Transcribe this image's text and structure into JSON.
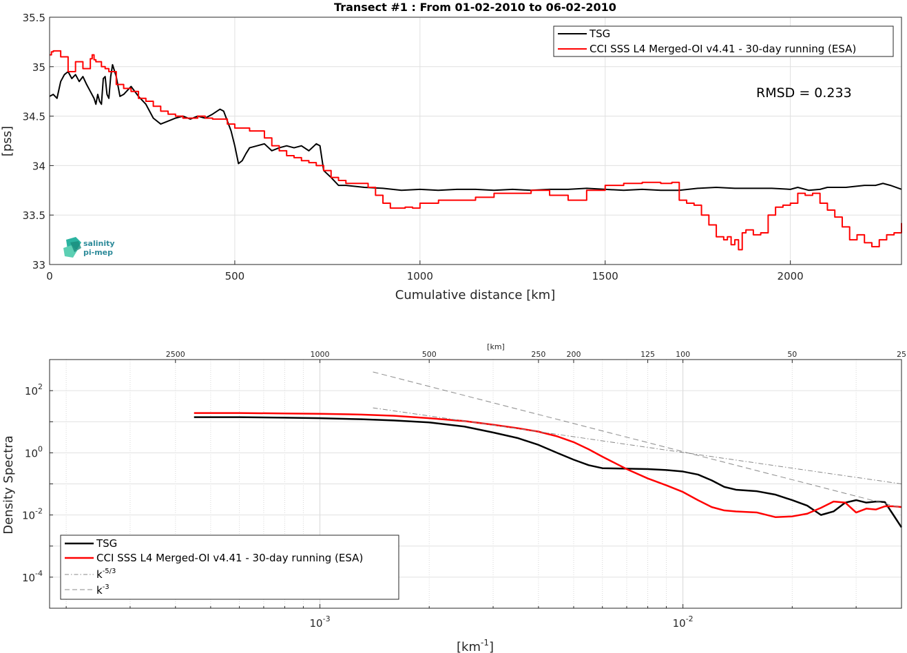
{
  "chart_data": [
    {
      "type": "line",
      "title": "Transect #1 : From 01-02-2010 to 06-02-2010",
      "xlabel": "Cumulative distance [km]",
      "ylabel": "[pss]",
      "xlim": [
        0,
        2300
      ],
      "ylim": [
        33,
        35.5
      ],
      "xticks": [
        0,
        500,
        1000,
        1500,
        2000
      ],
      "yticks": [
        33,
        33.5,
        34,
        34.5,
        35,
        35.5
      ],
      "grid": true,
      "legend_position": "top-right",
      "annotation": "RMSD = 0.233",
      "logo": {
        "line1": "salinity",
        "line2": "pi-mep"
      },
      "series": [
        {
          "name": "TSG",
          "color": "#000000",
          "x": [
            0,
            10,
            20,
            30,
            40,
            50,
            60,
            70,
            80,
            90,
            100,
            110,
            120,
            125,
            130,
            135,
            140,
            145,
            150,
            155,
            160,
            165,
            170,
            180,
            190,
            200,
            220,
            240,
            260,
            280,
            300,
            320,
            340,
            360,
            380,
            400,
            420,
            440,
            460,
            470,
            480,
            490,
            500,
            510,
            520,
            530,
            540,
            560,
            580,
            600,
            620,
            640,
            660,
            680,
            700,
            720,
            730,
            740,
            760,
            780,
            800,
            850,
            900,
            950,
            1000,
            1050,
            1100,
            1150,
            1200,
            1250,
            1300,
            1350,
            1400,
            1450,
            1500,
            1550,
            1600,
            1650,
            1700,
            1750,
            1800,
            1850,
            1900,
            1950,
            2000,
            2020,
            2050,
            2080,
            2100,
            2150,
            2200,
            2230,
            2250,
            2270,
            2300
          ],
          "y": [
            34.7,
            34.72,
            34.68,
            34.85,
            34.92,
            34.95,
            34.88,
            34.92,
            34.85,
            34.9,
            34.82,
            34.75,
            34.68,
            34.62,
            34.72,
            34.65,
            34.62,
            34.88,
            34.9,
            34.72,
            34.68,
            34.9,
            35.02,
            34.9,
            34.7,
            34.72,
            34.8,
            34.7,
            34.62,
            34.48,
            34.42,
            34.45,
            34.48,
            34.5,
            34.47,
            34.5,
            34.48,
            34.52,
            34.57,
            34.55,
            34.45,
            34.35,
            34.2,
            34.02,
            34.05,
            34.12,
            34.18,
            34.2,
            34.22,
            34.15,
            34.18,
            34.2,
            34.18,
            34.2,
            34.15,
            34.22,
            34.2,
            33.95,
            33.88,
            33.8,
            33.8,
            33.78,
            33.77,
            33.75,
            33.76,
            33.75,
            33.76,
            33.76,
            33.75,
            33.76,
            33.75,
            33.76,
            33.76,
            33.77,
            33.76,
            33.75,
            33.76,
            33.75,
            33.75,
            33.77,
            33.78,
            33.77,
            33.77,
            33.77,
            33.76,
            33.78,
            33.75,
            33.76,
            33.78,
            33.78,
            33.8,
            33.8,
            33.82,
            33.8,
            33.76
          ]
        },
        {
          "name": "CCI SSS L4 Merged-OI v4.41 - 30-day running (ESA)",
          "color": "#ff0000",
          "x": [
            0,
            5,
            10,
            30,
            50,
            60,
            70,
            80,
            90,
            100,
            110,
            115,
            120,
            125,
            140,
            150,
            160,
            170,
            180,
            200,
            220,
            240,
            260,
            280,
            300,
            320,
            340,
            360,
            380,
            400,
            420,
            440,
            460,
            480,
            500,
            520,
            540,
            560,
            580,
            600,
            620,
            640,
            660,
            680,
            700,
            720,
            740,
            760,
            780,
            800,
            820,
            840,
            860,
            880,
            900,
            920,
            940,
            960,
            980,
            1000,
            1050,
            1100,
            1150,
            1200,
            1250,
            1300,
            1350,
            1400,
            1450,
            1500,
            1550,
            1600,
            1650,
            1680,
            1700,
            1720,
            1740,
            1760,
            1780,
            1800,
            1820,
            1830,
            1840,
            1850,
            1860,
            1870,
            1880,
            1900,
            1920,
            1940,
            1960,
            1980,
            2000,
            2020,
            2040,
            2060,
            2080,
            2100,
            2120,
            2140,
            2160,
            2180,
            2200,
            2220,
            2240,
            2260,
            2280,
            2300
          ],
          "y": [
            35.12,
            35.15,
            35.16,
            35.1,
            34.95,
            34.95,
            35.05,
            35.05,
            34.98,
            34.98,
            35.08,
            35.12,
            35.07,
            35.05,
            35.0,
            34.98,
            34.95,
            34.95,
            34.82,
            34.78,
            34.75,
            34.68,
            34.65,
            34.6,
            34.55,
            34.52,
            34.5,
            34.48,
            34.48,
            34.5,
            34.48,
            34.47,
            34.47,
            34.42,
            34.38,
            34.38,
            34.35,
            34.35,
            34.28,
            34.2,
            34.15,
            34.1,
            34.08,
            34.05,
            34.03,
            34.0,
            33.95,
            33.88,
            33.85,
            33.82,
            33.82,
            33.82,
            33.78,
            33.7,
            33.62,
            33.57,
            33.57,
            33.58,
            33.57,
            33.62,
            33.65,
            33.65,
            33.68,
            33.72,
            33.72,
            33.75,
            33.7,
            33.65,
            33.75,
            33.8,
            33.82,
            33.83,
            33.82,
            33.83,
            33.65,
            33.62,
            33.6,
            33.5,
            33.4,
            33.28,
            33.25,
            33.28,
            33.2,
            33.25,
            33.15,
            33.32,
            33.35,
            33.3,
            33.32,
            33.5,
            33.58,
            33.6,
            33.62,
            33.72,
            33.7,
            33.72,
            33.62,
            33.55,
            33.48,
            33.38,
            33.25,
            33.3,
            33.22,
            33.18,
            33.25,
            33.3,
            33.32,
            33.42
          ]
        }
      ]
    },
    {
      "type": "line",
      "title": "",
      "xlabel": "[km⁻¹]",
      "xlabel_base": "[km",
      "xlabel_exp": "-1",
      "xlabel_tail": "]",
      "ylabel": "Density Spectra",
      "xscale": "log",
      "yscale": "log",
      "xlim": [
        0.00018,
        0.04
      ],
      "ylim": [
        1e-05,
        1000
      ],
      "xticks": [
        0.001,
        0.01
      ],
      "xtick_labels": [
        {
          "base": "10",
          "exp": "-3"
        },
        {
          "base": "10",
          "exp": "-2"
        }
      ],
      "yticks": [
        0.0001,
        0.01,
        1,
        100
      ],
      "ytick_labels": [
        {
          "base": "10",
          "exp": "-4"
        },
        {
          "base": "10",
          "exp": "-2"
        },
        {
          "base": "10",
          "exp": "0"
        },
        {
          "base": "10",
          "exp": "2"
        }
      ],
      "top_axis_label": "[km]",
      "top_axis_ticks": [
        2500,
        1000,
        500,
        250,
        200,
        125,
        100,
        50,
        25
      ],
      "grid": true,
      "legend_position": "bottom-left",
      "series": [
        {
          "name": "TSG",
          "color": "#000000",
          "style": "solid",
          "x": [
            0.00045,
            0.0006,
            0.0008,
            0.001,
            0.0013,
            0.0016,
            0.002,
            0.0025,
            0.003,
            0.0035,
            0.004,
            0.0045,
            0.005,
            0.0055,
            0.006,
            0.007,
            0.008,
            0.009,
            0.01,
            0.011,
            0.012,
            0.013,
            0.014,
            0.016,
            0.018,
            0.02,
            0.022,
            0.024,
            0.026,
            0.028,
            0.03,
            0.032,
            0.034,
            0.036,
            0.038,
            0.04
          ],
          "y": [
            14,
            14,
            13.5,
            13,
            12,
            11,
            9.5,
            7,
            4.5,
            3,
            1.8,
            1.0,
            0.6,
            0.4,
            0.32,
            0.31,
            0.3,
            0.28,
            0.25,
            0.2,
            0.13,
            0.08,
            0.065,
            0.058,
            0.045,
            0.03,
            0.02,
            0.01,
            0.013,
            0.025,
            0.03,
            0.025,
            0.027,
            0.026,
            0.01,
            0.004
          ]
        },
        {
          "name": "CCI SSS L4 Merged-OI v4.41 - 30-day running (ESA)",
          "color": "#ff0000",
          "style": "solid",
          "x": [
            0.00045,
            0.0006,
            0.0008,
            0.001,
            0.0013,
            0.0016,
            0.002,
            0.0025,
            0.003,
            0.0035,
            0.004,
            0.0045,
            0.005,
            0.0055,
            0.006,
            0.007,
            0.008,
            0.009,
            0.01,
            0.011,
            0.012,
            0.013,
            0.014,
            0.016,
            0.018,
            0.02,
            0.022,
            0.024,
            0.026,
            0.028,
            0.03,
            0.032,
            0.034,
            0.036,
            0.038,
            0.04
          ],
          "y": [
            19,
            19,
            18.5,
            18,
            17,
            15.5,
            13,
            10.5,
            8,
            6.2,
            4.8,
            3.4,
            2.2,
            1.3,
            0.75,
            0.3,
            0.15,
            0.09,
            0.055,
            0.03,
            0.018,
            0.014,
            0.013,
            0.012,
            0.0085,
            0.009,
            0.011,
            0.017,
            0.027,
            0.025,
            0.012,
            0.016,
            0.015,
            0.019,
            0.019,
            0.018
          ]
        },
        {
          "name": "k⁻⁵ᐟ³",
          "label_base": "k",
          "label_exp": "-5/3",
          "color": "#888888",
          "style": "dashdot",
          "x": [
            0.0014,
            0.04
          ],
          "y": [
            28,
            0.1
          ]
        },
        {
          "name": "k⁻³",
          "label_base": "k",
          "label_exp": "-3",
          "color": "#888888",
          "style": "dashed",
          "x": [
            0.0014,
            0.04
          ],
          "y": [
            400,
            0.017
          ]
        }
      ]
    }
  ]
}
